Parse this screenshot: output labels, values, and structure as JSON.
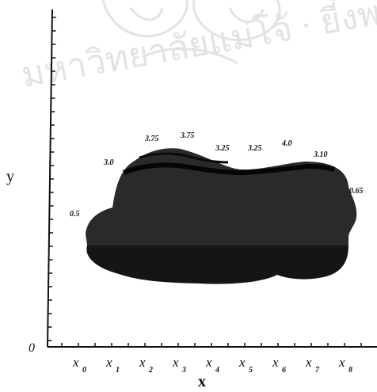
{
  "watermark": {
    "text": "มหาวิทยาลัยแม่โจ้ · ยี่งพระจอมเกล้าเจ้าคุณ"
  },
  "axes": {
    "y_label": "y",
    "x_label": "x",
    "origin_label": "0"
  },
  "x_ticks": [
    {
      "base": "x",
      "sub": "0"
    },
    {
      "base": "x",
      "sub": "1"
    },
    {
      "base": "x",
      "sub": "2"
    },
    {
      "base": "x",
      "sub": "3"
    },
    {
      "base": "x",
      "sub": "4"
    },
    {
      "base": "x",
      "sub": "5"
    },
    {
      "base": "x",
      "sub": "6"
    },
    {
      "base": "x",
      "sub": "7"
    },
    {
      "base": "x",
      "sub": "8"
    }
  ],
  "boundary_labels": [
    "0.5",
    "3.0",
    "3.75",
    "3.75",
    "3.25",
    "3.25",
    "4.0",
    "3.10",
    "0.65"
  ],
  "colors": {
    "region": "#2a2a2a",
    "region_dark": "#141414",
    "band": "#050505",
    "axis": "#111111"
  }
}
